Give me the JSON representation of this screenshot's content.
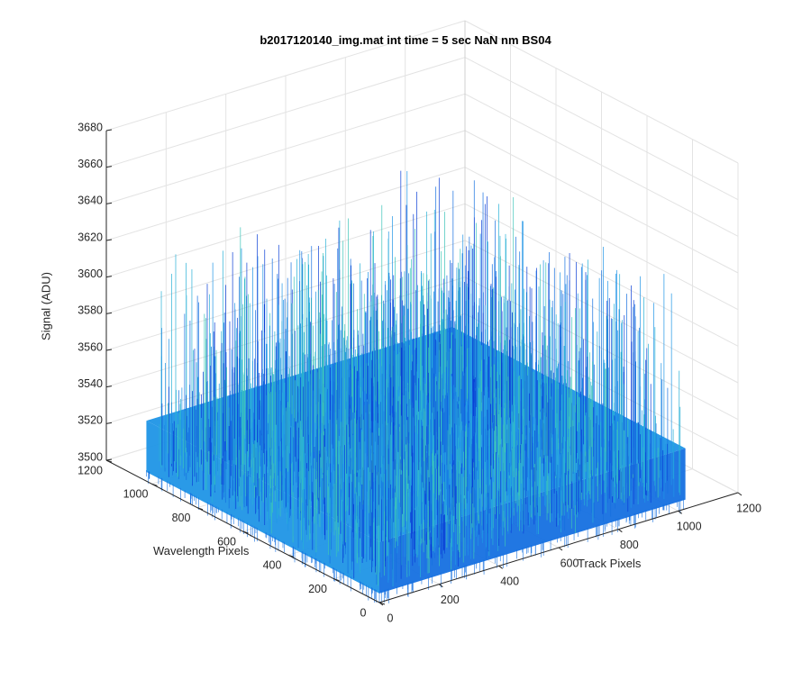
{
  "chart_data": {
    "type": "surface-3d",
    "title": "b2017120140_img.mat int time = 5 sec  NaN nm BS04",
    "xlabel": "Track Pixels",
    "ylabel": "Wavelength Pixels",
    "zlabel": "Signal (ADU)",
    "x_ticks": [
      0,
      200,
      400,
      600,
      800,
      1000,
      1200
    ],
    "y_ticks": [
      0,
      200,
      400,
      600,
      800,
      1000,
      1200
    ],
    "z_ticks": [
      3500,
      3520,
      3540,
      3560,
      3580,
      3600,
      3620,
      3640,
      3660,
      3680
    ],
    "xlim": [
      0,
      1200
    ],
    "ylim": [
      0,
      1200
    ],
    "zlim": [
      3500,
      3680
    ],
    "data_extent": {
      "x": [
        0,
        1024
      ],
      "y": [
        0,
        1024
      ]
    },
    "signal_level": {
      "baseline": 3525,
      "noise_max": 3630
    },
    "grid": true,
    "colormap": [
      "#0a3fd6",
      "#1570e0",
      "#1f95e6",
      "#28b0d6",
      "#3cc4b8"
    ]
  }
}
